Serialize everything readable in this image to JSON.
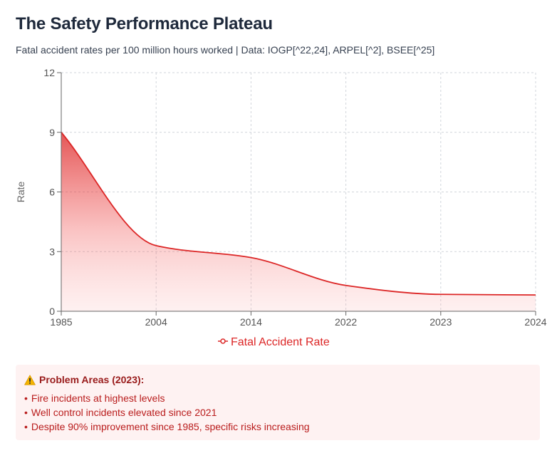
{
  "header": {
    "title": "The Safety Performance Plateau",
    "subtitle": "Fatal accident rates per 100 million hours worked | Data: IOGP[^22,24], ARPEL[^2], BSEE[^25]"
  },
  "chart_data": {
    "type": "area",
    "title": "The Safety Performance Plateau",
    "categories": [
      "1985",
      "2004",
      "2014",
      "2022",
      "2023",
      "2024"
    ],
    "series": [
      {
        "name": "Fatal Accident Rate",
        "values": [
          9.0,
          3.3,
          2.7,
          1.3,
          0.85,
          0.82
        ]
      }
    ],
    "xlabel": "",
    "ylabel": "Rate",
    "ylim": [
      0,
      12
    ],
    "yticks": [
      0,
      3,
      6,
      9,
      12
    ],
    "grid": true,
    "legend": "bottom-center",
    "colors": {
      "line": "#dc2626",
      "fill_top": "#dc2626",
      "fill_bottom": "#fee2e2"
    }
  },
  "alert": {
    "icon": "warning-icon",
    "title": "Problem Areas (2023):",
    "bullet": "•",
    "items": [
      "Fire incidents at highest levels",
      "Well control incidents elevated since 2021",
      "Despite 90% improvement since 1985, specific risks increasing"
    ]
  }
}
